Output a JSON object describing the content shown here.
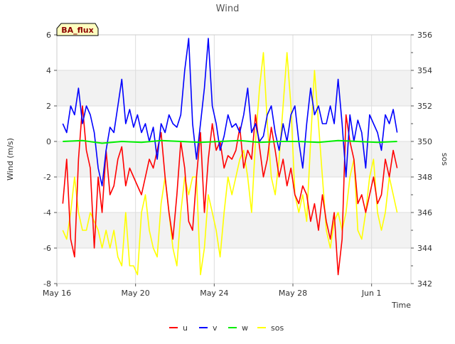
{
  "chart_data": {
    "type": "line",
    "title": "Wind",
    "site_label": "BA_flux",
    "xlabel": "Time",
    "ylabel_left": "Wind (m/s)",
    "ylabel_right": "sos",
    "xlim": [
      0,
      18
    ],
    "ylim_left": [
      -8,
      6
    ],
    "ylim_right": [
      342,
      356
    ],
    "x_ticks": [
      {
        "day": 0,
        "label": "May 16"
      },
      {
        "day": 4,
        "label": "May 20"
      },
      {
        "day": 8,
        "label": "May 24"
      },
      {
        "day": 12,
        "label": "May 28"
      },
      {
        "day": 16,
        "label": "Jun 1"
      }
    ],
    "y_ticks_left": [
      -8,
      -6,
      -4,
      -2,
      0,
      2,
      4,
      6
    ],
    "y_ticks_right": [
      342,
      344,
      346,
      348,
      350,
      352,
      354,
      356
    ],
    "grid": true,
    "legend_position": "bottom",
    "series": [
      {
        "name": "u",
        "color": "#ff0000",
        "axis": "left",
        "x": [
          0.3,
          0.5,
          0.7,
          0.9,
          1.1,
          1.3,
          1.5,
          1.7,
          1.9,
          2.1,
          2.3,
          2.5,
          2.7,
          2.9,
          3.1,
          3.3,
          3.5,
          3.7,
          3.9,
          4.1,
          4.3,
          4.5,
          4.7,
          4.9,
          5.1,
          5.3,
          5.5,
          5.7,
          5.9,
          6.1,
          6.3,
          6.5,
          6.7,
          6.9,
          7.1,
          7.3,
          7.5,
          7.7,
          7.9,
          8.1,
          8.3,
          8.5,
          8.7,
          8.9,
          9.1,
          9.3,
          9.5,
          9.7,
          9.9,
          10.1,
          10.3,
          10.5,
          10.7,
          10.9,
          11.1,
          11.3,
          11.5,
          11.7,
          11.9,
          12.1,
          12.3,
          12.5,
          12.7,
          12.9,
          13.1,
          13.3,
          13.5,
          13.7,
          13.9,
          14.1,
          14.3,
          14.5,
          14.7,
          14.9,
          15.1,
          15.3,
          15.5,
          15.7,
          15.9,
          16.1,
          16.3,
          16.5,
          16.7,
          16.9,
          17.1,
          17.3
        ],
        "values": [
          -3.5,
          -1.0,
          -5.5,
          -6.5,
          -1.0,
          2.0,
          -0.5,
          -1.5,
          -6.0,
          -2.0,
          -4.0,
          -0.5,
          -3.0,
          -2.5,
          -1.0,
          -0.3,
          -2.5,
          -1.5,
          -2.0,
          -2.5,
          -3.0,
          -2.0,
          -1.0,
          -1.5,
          -0.5,
          0.5,
          -2.0,
          -4.0,
          -5.5,
          -3.0,
          0.0,
          -1.5,
          -4.5,
          -5.0,
          -2.0,
          0.5,
          -4.0,
          -1.0,
          1.0,
          -0.5,
          0.0,
          -1.5,
          -0.8,
          -1.0,
          -0.5,
          0.8,
          -1.5,
          -0.5,
          -1.0,
          1.5,
          -0.3,
          -2.0,
          -1.0,
          0.8,
          -0.5,
          -2.0,
          -1.0,
          -2.5,
          -1.5,
          -3.0,
          -3.5,
          -2.5,
          -3.0,
          -4.5,
          -3.5,
          -5.0,
          -3.0,
          -4.5,
          -5.5,
          -4.0,
          -7.5,
          -5.5,
          1.5,
          0.0,
          -1.0,
          -3.5,
          -3.0,
          -4.0,
          -3.0,
          -2.0,
          -3.5,
          -3.0,
          -1.0,
          -2.0,
          -0.5,
          -1.5
        ]
      },
      {
        "name": "v",
        "color": "#0000ff",
        "axis": "left",
        "x": [
          0.3,
          0.5,
          0.7,
          0.9,
          1.1,
          1.3,
          1.5,
          1.7,
          1.9,
          2.1,
          2.3,
          2.5,
          2.7,
          2.9,
          3.1,
          3.3,
          3.5,
          3.7,
          3.9,
          4.1,
          4.3,
          4.5,
          4.7,
          4.9,
          5.1,
          5.3,
          5.5,
          5.7,
          5.9,
          6.1,
          6.3,
          6.5,
          6.7,
          6.9,
          7.1,
          7.3,
          7.5,
          7.7,
          7.9,
          8.1,
          8.3,
          8.5,
          8.7,
          8.9,
          9.1,
          9.3,
          9.5,
          9.7,
          9.9,
          10.1,
          10.3,
          10.5,
          10.7,
          10.9,
          11.1,
          11.3,
          11.5,
          11.7,
          11.9,
          12.1,
          12.3,
          12.5,
          12.7,
          12.9,
          13.1,
          13.3,
          13.5,
          13.7,
          13.9,
          14.1,
          14.3,
          14.5,
          14.7,
          14.9,
          15.1,
          15.3,
          15.5,
          15.7,
          15.9,
          16.1,
          16.3,
          16.5,
          16.7,
          16.9,
          17.1,
          17.3
        ],
        "values": [
          1.0,
          0.5,
          2.0,
          1.5,
          3.0,
          1.0,
          2.0,
          1.5,
          0.5,
          -1.5,
          -2.5,
          -0.5,
          0.8,
          0.5,
          2.0,
          3.5,
          1.0,
          1.8,
          0.8,
          1.5,
          0.5,
          1.0,
          0.0,
          0.8,
          -1.0,
          1.0,
          0.5,
          1.5,
          1.0,
          0.8,
          1.5,
          4.0,
          5.8,
          1.0,
          -1.0,
          1.0,
          3.0,
          5.8,
          2.0,
          1.0,
          -0.5,
          0.3,
          1.5,
          0.8,
          1.0,
          0.5,
          1.5,
          3.0,
          0.5,
          1.0,
          0.0,
          0.3,
          1.5,
          2.0,
          0.5,
          -0.5,
          1.0,
          0.0,
          1.5,
          2.0,
          0.0,
          -1.5,
          1.0,
          3.0,
          1.5,
          2.0,
          1.0,
          1.0,
          2.0,
          1.0,
          3.5,
          1.0,
          -2.0,
          1.5,
          0.0,
          1.2,
          0.5,
          -1.5,
          1.5,
          1.0,
          0.5,
          -0.5,
          1.5,
          1.0,
          1.8,
          0.5
        ]
      },
      {
        "name": "w",
        "color": "#00ee00",
        "axis": "left",
        "x": [
          0.3,
          1.3,
          2.3,
          3.3,
          4.3,
          5.3,
          6.3,
          7.3,
          8.3,
          9.3,
          10.3,
          11.3,
          12.3,
          13.3,
          14.3,
          15.3,
          16.3,
          17.3
        ],
        "values": [
          0.0,
          0.05,
          -0.1,
          0.0,
          -0.05,
          0.05,
          0.0,
          -0.05,
          0.0,
          0.05,
          -0.05,
          0.0,
          0.0,
          -0.05,
          0.05,
          0.0,
          -0.05,
          0.0
        ]
      },
      {
        "name": "sos",
        "color": "#ffff00",
        "axis": "right",
        "x": [
          0.3,
          0.5,
          0.7,
          0.9,
          1.1,
          1.3,
          1.5,
          1.7,
          1.9,
          2.1,
          2.3,
          2.5,
          2.7,
          2.9,
          3.1,
          3.3,
          3.5,
          3.7,
          3.9,
          4.1,
          4.3,
          4.5,
          4.7,
          4.9,
          5.1,
          5.3,
          5.5,
          5.7,
          5.9,
          6.1,
          6.3,
          6.5,
          6.7,
          6.9,
          7.1,
          7.3,
          7.5,
          7.7,
          7.9,
          8.1,
          8.3,
          8.5,
          8.7,
          8.9,
          9.1,
          9.3,
          9.5,
          9.7,
          9.9,
          10.1,
          10.3,
          10.5,
          10.7,
          10.9,
          11.1,
          11.3,
          11.5,
          11.7,
          11.9,
          12.1,
          12.3,
          12.5,
          12.7,
          12.9,
          13.1,
          13.3,
          13.5,
          13.7,
          13.9,
          14.1,
          14.3,
          14.5,
          14.7,
          14.9,
          15.1,
          15.3,
          15.5,
          15.7,
          15.9,
          16.1,
          16.3,
          16.5,
          16.7,
          16.9,
          17.1,
          17.3
        ],
        "values": [
          345,
          344.5,
          346,
          348,
          346,
          345,
          345,
          346,
          345.5,
          345,
          344,
          345,
          344,
          345,
          343.5,
          343,
          346,
          343,
          343,
          342.5,
          346,
          347,
          345,
          344,
          343.5,
          346.5,
          348,
          346,
          344,
          343,
          346,
          348,
          347,
          348,
          348,
          342.5,
          344,
          347,
          346,
          345,
          343.5,
          346,
          348,
          347,
          348,
          349,
          349.5,
          348,
          346,
          350,
          353,
          355,
          351,
          348,
          347,
          349,
          352,
          355,
          352,
          347,
          346,
          347,
          345.5,
          350,
          354,
          351,
          348,
          345,
          344,
          345.5,
          346,
          345,
          346,
          348,
          349,
          345,
          344.5,
          346,
          348,
          349,
          346,
          345,
          346,
          348,
          347,
          346
        ]
      }
    ]
  }
}
